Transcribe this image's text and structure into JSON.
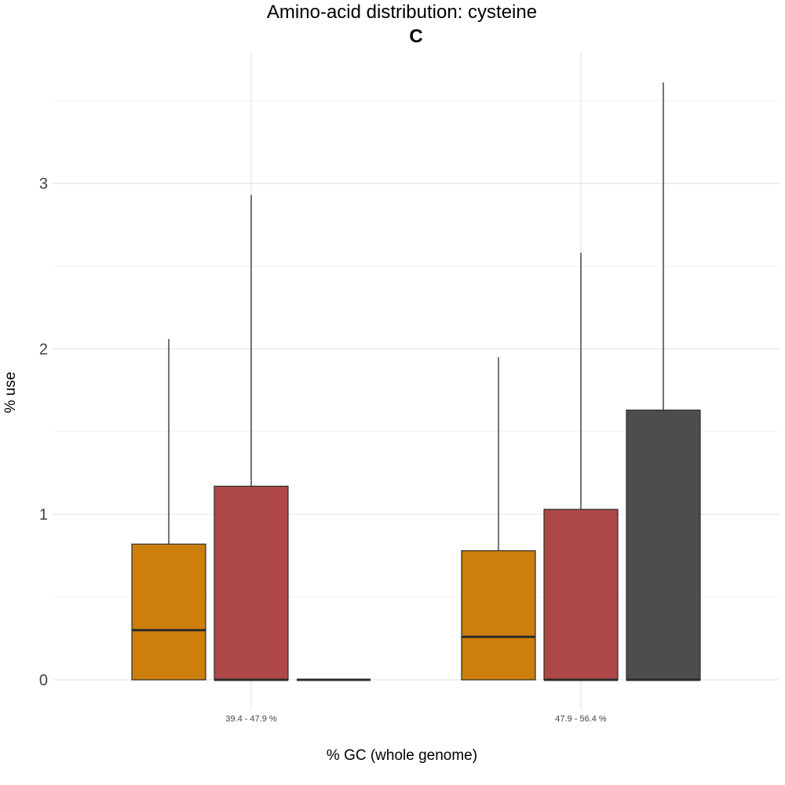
{
  "chart_data": {
    "type": "boxplot",
    "title": "Amino-acid distribution: cysteine",
    "subtitle": "C",
    "xlabel": "% GC (whole genome)",
    "ylabel": "% use",
    "ylim": [
      -0.18,
      3.8
    ],
    "yticks": [
      0,
      1,
      2,
      3
    ],
    "grid": true,
    "legend": "none",
    "categories": [
      "39.4 - 47.9 %",
      "47.9 - 56.4 %"
    ],
    "series": [
      {
        "color": "#cc7f0b",
        "boxes": [
          {
            "min": 0,
            "q1": 0,
            "median": 0.3,
            "q3": 0.82,
            "max": 2.06
          },
          {
            "min": 0,
            "q1": 0,
            "median": 0.26,
            "q3": 0.78,
            "max": 1.95
          }
        ]
      },
      {
        "color": "#ae4848",
        "boxes": [
          {
            "min": 0,
            "q1": 0,
            "median": 0,
            "q3": 1.17,
            "max": 2.93
          },
          {
            "min": 0,
            "q1": 0,
            "median": 0,
            "q3": 1.03,
            "max": 2.58
          }
        ]
      },
      {
        "color": "#4d4d4d",
        "boxes": [
          {
            "min": 0,
            "q1": 0,
            "median": 0,
            "q3": 0,
            "max": 0
          },
          {
            "min": 0,
            "q1": 0,
            "median": 0,
            "q3": 1.63,
            "max": 3.61
          }
        ]
      }
    ]
  }
}
